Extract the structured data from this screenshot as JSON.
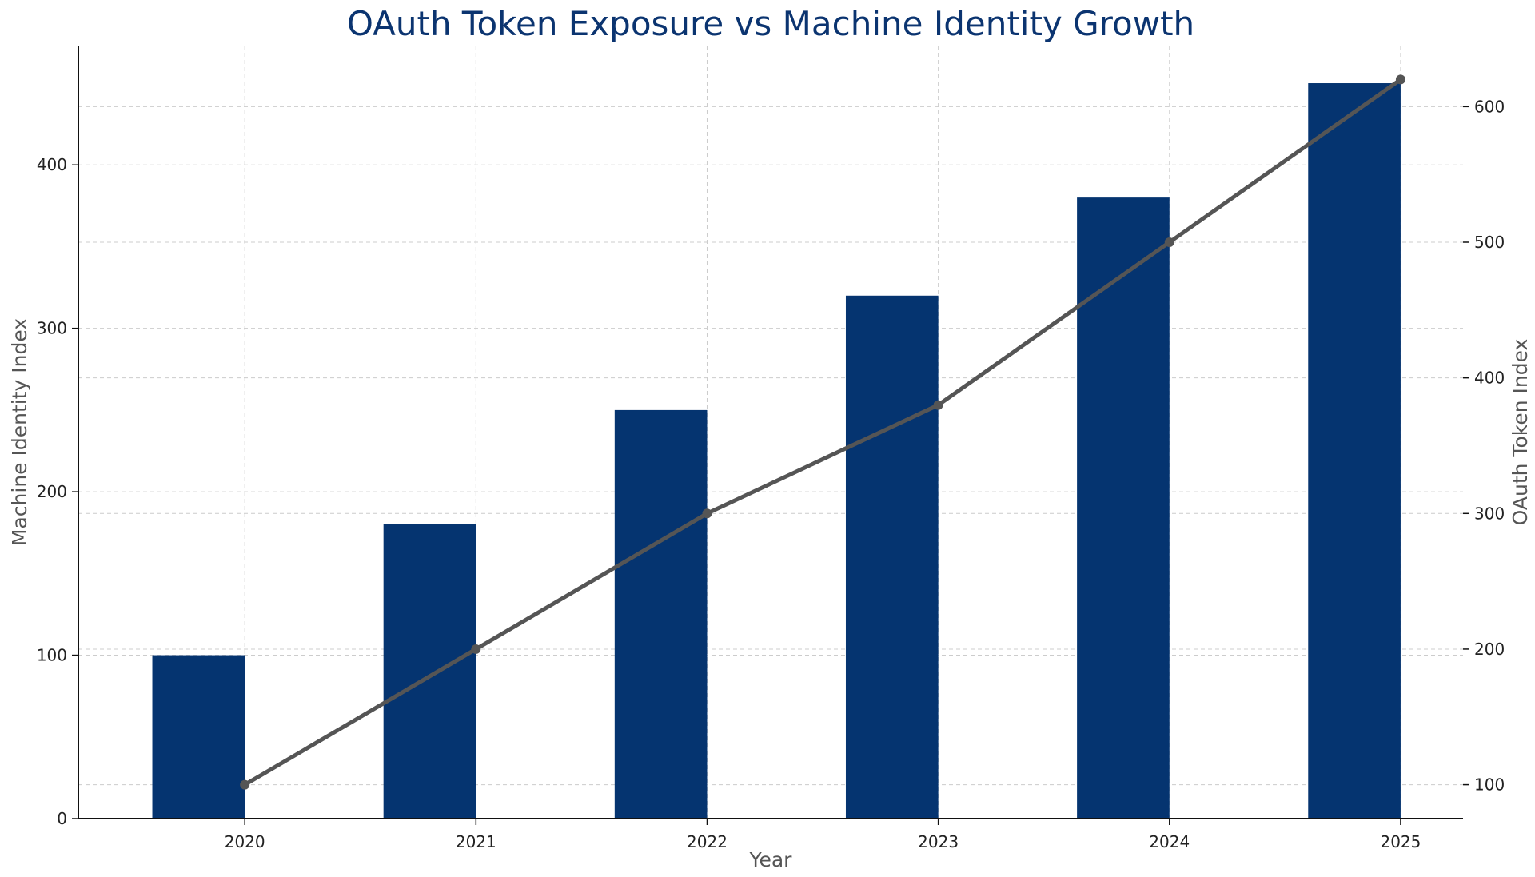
{
  "chart_data": {
    "type": "bar",
    "title": "OAuth Token Exposure vs Machine Identity Growth",
    "xlabel": "Year",
    "ylabel": "Machine Identity Index",
    "y2label": "OAuth Token Index",
    "categories": [
      "2020",
      "2021",
      "2022",
      "2023",
      "2024",
      "2025"
    ],
    "series": [
      {
        "type": "bar",
        "axis": "left",
        "values": [
          100,
          180,
          250,
          320,
          380,
          450
        ],
        "color": "#053470"
      },
      {
        "type": "line",
        "axis": "right",
        "values": [
          100,
          200,
          300,
          380,
          500,
          620
        ],
        "color": "#555555",
        "marker": "circle"
      }
    ],
    "ylim": [
      0,
      473
    ],
    "y_ticks": [
      0,
      100,
      200,
      300,
      400
    ],
    "y2lim": [
      75,
      645
    ],
    "y2_ticks": [
      100,
      200,
      300,
      400,
      500,
      600
    ],
    "grid": true,
    "legend": "none",
    "colors": {
      "title": "#0b3470",
      "axis_label": "#555555",
      "grid": "#cccccc"
    }
  }
}
